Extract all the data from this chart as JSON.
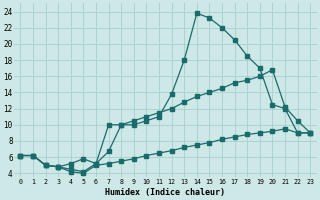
{
  "xlabel": "Humidex (Indice chaleur)",
  "bg_color": "#cde8e6",
  "grid_color": "#a8cece",
  "line_color": "#1a6b6b",
  "xlim": [
    -0.5,
    23.5
  ],
  "ylim": [
    3.5,
    25
  ],
  "xticks": [
    0,
    1,
    2,
    3,
    4,
    5,
    6,
    7,
    8,
    9,
    10,
    11,
    12,
    13,
    14,
    15,
    16,
    17,
    18,
    19,
    20,
    21,
    22,
    23
  ],
  "yticks": [
    4,
    6,
    8,
    10,
    12,
    14,
    16,
    18,
    20,
    22,
    24
  ],
  "line1_x": [
    0,
    1,
    2,
    3,
    4,
    5,
    6,
    7,
    8,
    9,
    10,
    11,
    12,
    13,
    14,
    15,
    16,
    17,
    18,
    19,
    20,
    21,
    22,
    23
  ],
  "line1_y": [
    6.2,
    6.2,
    5.0,
    4.8,
    4.5,
    4.2,
    5.2,
    6.7,
    10.0,
    10.0,
    10.5,
    11.0,
    13.8,
    18.0,
    23.8,
    23.2,
    22.0,
    20.5,
    18.5,
    17.0,
    12.5,
    12.0,
    9.0,
    9.0
  ],
  "line2_x": [
    0,
    1,
    2,
    3,
    4,
    5,
    6,
    7,
    8,
    9,
    10,
    11,
    12,
    13,
    14,
    15,
    16,
    17,
    18,
    19,
    20,
    21,
    22,
    23
  ],
  "line2_y": [
    6.2,
    6.2,
    5.0,
    4.8,
    5.2,
    5.8,
    5.2,
    10.0,
    10.0,
    10.5,
    11.0,
    11.5,
    12.0,
    12.8,
    13.5,
    14.0,
    14.5,
    15.2,
    15.5,
    16.0,
    16.8,
    12.2,
    10.5,
    9.0
  ],
  "line3_x": [
    0,
    1,
    2,
    3,
    4,
    5,
    6,
    7,
    8,
    9,
    10,
    11,
    12,
    13,
    14,
    15,
    16,
    17,
    18,
    19,
    20,
    21,
    22,
    23
  ],
  "line3_y": [
    6.2,
    6.2,
    5.0,
    4.8,
    4.2,
    4.0,
    5.0,
    5.2,
    5.5,
    5.8,
    6.2,
    6.5,
    6.8,
    7.2,
    7.5,
    7.8,
    8.2,
    8.5,
    8.8,
    9.0,
    9.2,
    9.5,
    9.0,
    9.0
  ]
}
